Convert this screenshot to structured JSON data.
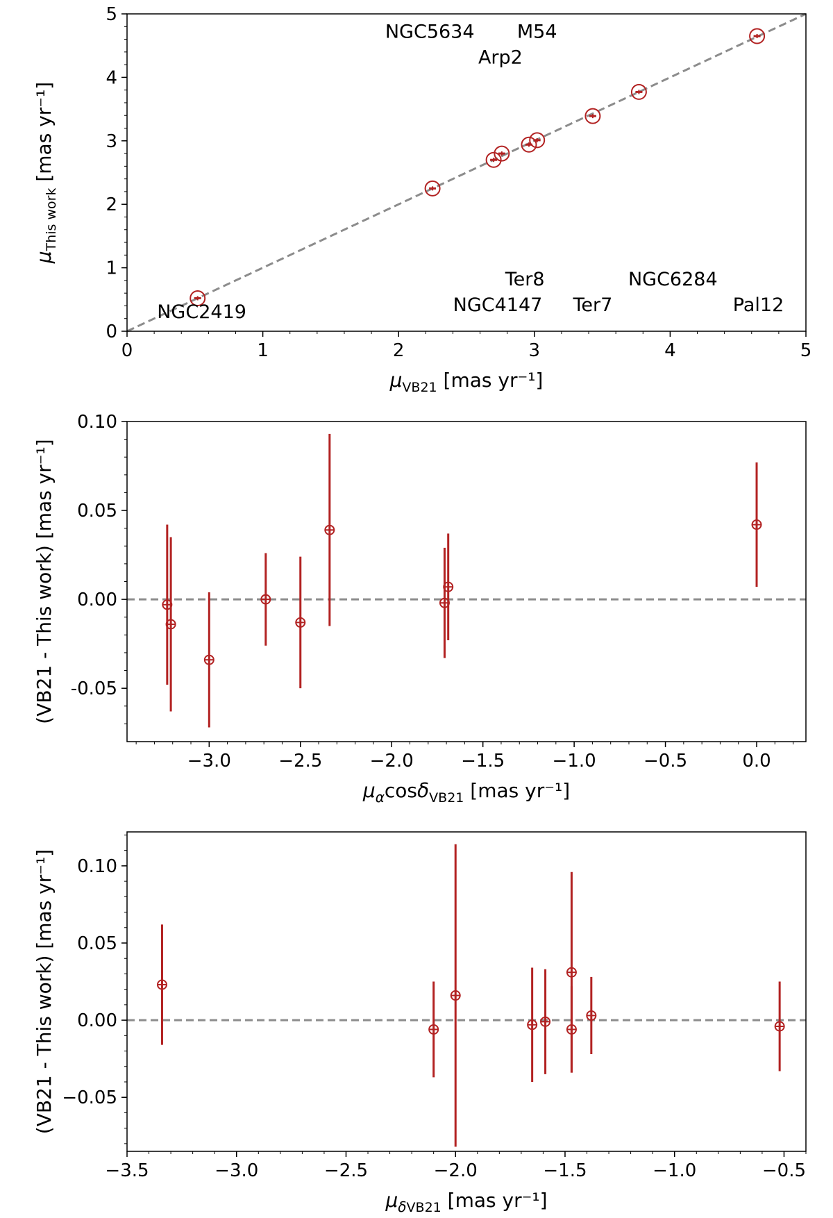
{
  "chart_data": [
    {
      "type": "scatter",
      "xlabel": "μVB21 [mas yr⁻¹]",
      "ylabel": "μThis work [mas yr⁻¹]",
      "xlim": [
        0,
        5
      ],
      "ylim": [
        0,
        5
      ],
      "xticks": [
        "0",
        "1",
        "2",
        "3",
        "4",
        "5"
      ],
      "yticks": [
        "0",
        "1",
        "2",
        "3",
        "4",
        "5"
      ],
      "reference_line": {
        "slope": 1,
        "intercept": 0,
        "style": "dashed",
        "color": "#8c8c8c"
      },
      "marker_color": "#b22222",
      "points": [
        {
          "x": 0.52,
          "y": 0.52
        },
        {
          "x": 2.25,
          "y": 2.25
        },
        {
          "x": 2.7,
          "y": 2.7
        },
        {
          "x": 2.76,
          "y": 2.8
        },
        {
          "x": 2.96,
          "y": 2.94
        },
        {
          "x": 3.02,
          "y": 3.01
        },
        {
          "x": 3.43,
          "y": 3.39
        },
        {
          "x": 3.77,
          "y": 3.77
        },
        {
          "x": 4.64,
          "y": 4.65
        }
      ],
      "annotations": [
        {
          "text": "NGC5634",
          "x": 2.23,
          "y": 4.62
        },
        {
          "text": "M54",
          "x": 3.02,
          "y": 4.62
        },
        {
          "text": "Arp2",
          "x": 2.75,
          "y": 4.22
        },
        {
          "text": "Ter8",
          "x": 2.93,
          "y": 0.72
        },
        {
          "text": "NGC6284",
          "x": 4.02,
          "y": 0.72
        },
        {
          "text": "NGC2419",
          "x": 0.55,
          "y": 0.21
        },
        {
          "text": "NGC4147",
          "x": 2.73,
          "y": 0.32
        },
        {
          "text": "Ter7",
          "x": 3.43,
          "y": 0.32
        },
        {
          "text": "Pal12",
          "x": 4.65,
          "y": 0.32
        }
      ]
    },
    {
      "type": "scatter",
      "xlabel": "μαcosδVB21 [mas yr⁻¹]",
      "ylabel": "(VB21 - This work) [mas yr⁻¹]",
      "xlim": [
        -3.45,
        0.27
      ],
      "ylim": [
        -0.08,
        0.1
      ],
      "xticks": [
        "−3.0",
        "−2.5",
        "−2.0",
        "−1.5",
        "−1.0",
        "−0.5",
        "0.0"
      ],
      "yticks": [
        "-0.05",
        "0.00",
        "0.05",
        "0.10"
      ],
      "reference_line": {
        "y": 0,
        "style": "dashed",
        "color": "#8c8c8c"
      },
      "marker_color": "#b22222",
      "points": [
        {
          "x": -3.23,
          "y": -0.003,
          "err": 0.045
        },
        {
          "x": -3.21,
          "y": -0.014,
          "err": 0.049
        },
        {
          "x": -3.0,
          "y": -0.034,
          "err": 0.038
        },
        {
          "x": -2.69,
          "y": 0.0,
          "err": 0.026
        },
        {
          "x": -2.5,
          "y": -0.013,
          "err": 0.037
        },
        {
          "x": -2.34,
          "y": 0.039,
          "err": 0.054
        },
        {
          "x": -1.71,
          "y": -0.002,
          "err": 0.031
        },
        {
          "x": -1.69,
          "y": 0.007,
          "err": 0.03
        },
        {
          "x": 0.0,
          "y": 0.042,
          "err": 0.035
        }
      ]
    },
    {
      "type": "scatter",
      "xlabel": "μδVB21 [mas yr⁻¹]",
      "ylabel": "(VB21 - This work) [mas yr⁻¹]",
      "xlim": [
        -3.5,
        -0.4
      ],
      "ylim": [
        -0.085,
        0.122
      ],
      "xticks": [
        "−3.5",
        "−3.0",
        "−2.5",
        "−2.0",
        "−1.5",
        "−1.0",
        "−0.5"
      ],
      "yticks": [
        "−0.05",
        "0.00",
        "0.05",
        "0.10"
      ],
      "reference_line": {
        "y": 0,
        "style": "dashed",
        "color": "#8c8c8c"
      },
      "marker_color": "#b22222",
      "points": [
        {
          "x": -3.34,
          "y": 0.023,
          "err": 0.039
        },
        {
          "x": -2.1,
          "y": -0.006,
          "err": 0.031
        },
        {
          "x": -2.0,
          "y": 0.016,
          "err": 0.098
        },
        {
          "x": -1.65,
          "y": -0.003,
          "err": 0.037
        },
        {
          "x": -1.59,
          "y": -0.001,
          "err": 0.034
        },
        {
          "x": -1.47,
          "y": 0.031,
          "err": 0.065
        },
        {
          "x": -1.47,
          "y": -0.006,
          "err": 0.028
        },
        {
          "x": -1.38,
          "y": 0.003,
          "err": 0.025
        },
        {
          "x": -0.52,
          "y": -0.004,
          "err": 0.029
        }
      ]
    }
  ]
}
